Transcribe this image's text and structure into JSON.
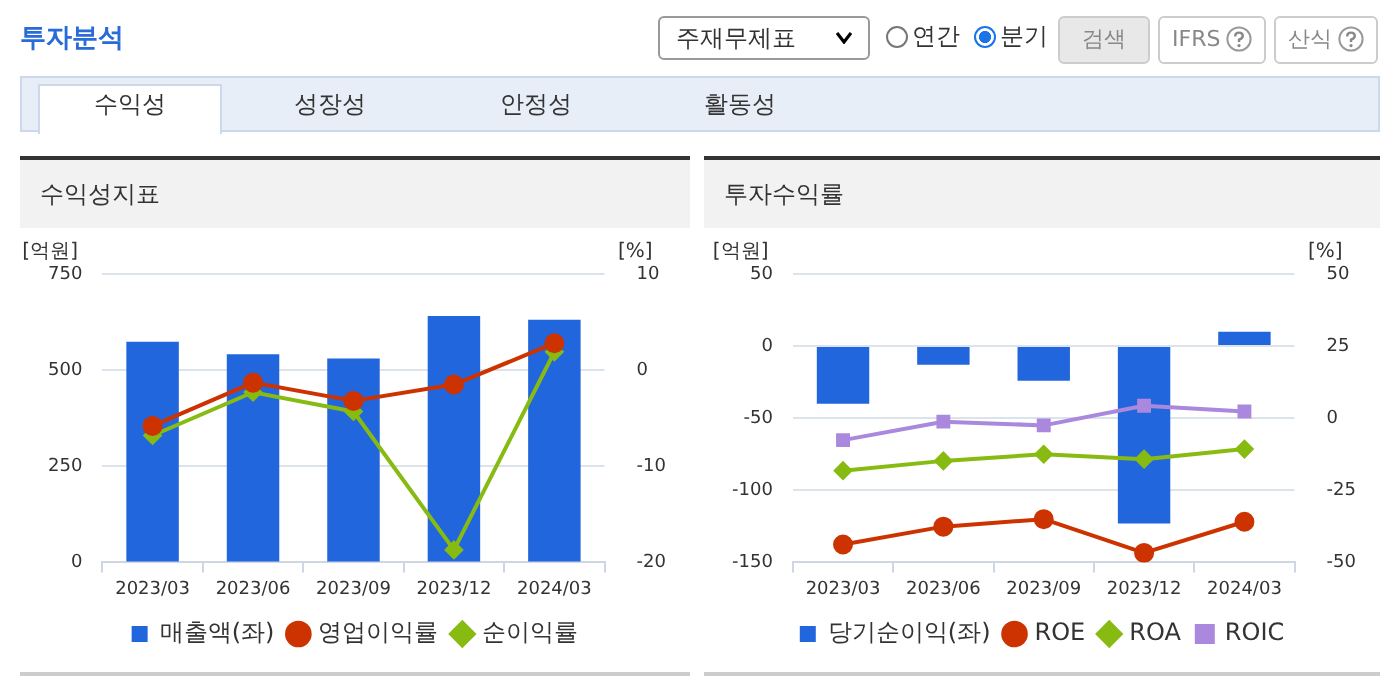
{
  "chart_data": [
    {
      "type": "bar",
      "title": "수익성지표",
      "ylabel": "[억원]",
      "y2label": "[%]",
      "categories": [
        "2023/03",
        "2023/06",
        "2023/09",
        "2023/12",
        "2024/03"
      ],
      "series": [
        {
          "name": "매출액(좌)",
          "color": "#2266dd",
          "values": [
            574,
            541,
            530,
            641,
            631
          ]
        },
        {
          "name": "영업이익률",
          "type": "line",
          "axis": "y2",
          "marker": "circle",
          "color": "#cc3300",
          "values": [
            -5.8,
            -1.3,
            -3.2,
            -1.5,
            2.8
          ]
        },
        {
          "name": "순이익률",
          "type": "line",
          "axis": "y2",
          "marker": "diamond",
          "color": "#88bb11",
          "values": [
            -6.8,
            -2.3,
            -4.3,
            -18.7,
            1.9
          ]
        }
      ],
      "ylim": [
        0,
        750
      ],
      "yticks": [
        0,
        250,
        500,
        750
      ],
      "y2lim": [
        -20,
        10
      ],
      "y2ticks": [
        -20,
        -10,
        0,
        10
      ],
      "grid": "y",
      "legend": "bottom",
      "annotations": [
        "투자분석",
        "주재무제표",
        "연간",
        "분기",
        "검색",
        "IFRS",
        "산식",
        "수익성",
        "성장성",
        "안정성",
        "활동성"
      ]
    },
    {
      "type": "bar",
      "title": "투자수익률",
      "ylabel": "[억원]",
      "y2label": "[%]",
      "categories": [
        "2023/03",
        "2023/06",
        "2023/09",
        "2023/12",
        "2024/03"
      ],
      "series": [
        {
          "name": "당기순이익(좌)",
          "color": "#2266dd",
          "values": [
            -40,
            -13,
            -24,
            -123,
            10
          ]
        },
        {
          "name": "ROE",
          "type": "line",
          "axis": "y2",
          "marker": "circle",
          "color": "#cc3300",
          "values": [
            -43.8,
            -37.6,
            -35,
            -46.7,
            -35.9
          ]
        },
        {
          "name": "ROA",
          "type": "line",
          "axis": "y2",
          "marker": "diamond",
          "color": "#88bb11",
          "values": [
            -18.2,
            -14.8,
            -12.5,
            -14.2,
            -10.7
          ]
        },
        {
          "name": "ROIC",
          "type": "line",
          "axis": "y2",
          "marker": "square",
          "color": "#aa88dd",
          "values": [
            -7.6,
            -1.2,
            -2.5,
            4.3,
            2.3
          ]
        }
      ],
      "ylim": [
        -150,
        50
      ],
      "yticks": [
        -150,
        -100,
        -50,
        0,
        50
      ],
      "y2lim": [
        -50,
        50
      ],
      "y2ticks": [
        -50,
        -25,
        0,
        25,
        50
      ],
      "grid": "y",
      "legend": "bottom"
    }
  ]
}
